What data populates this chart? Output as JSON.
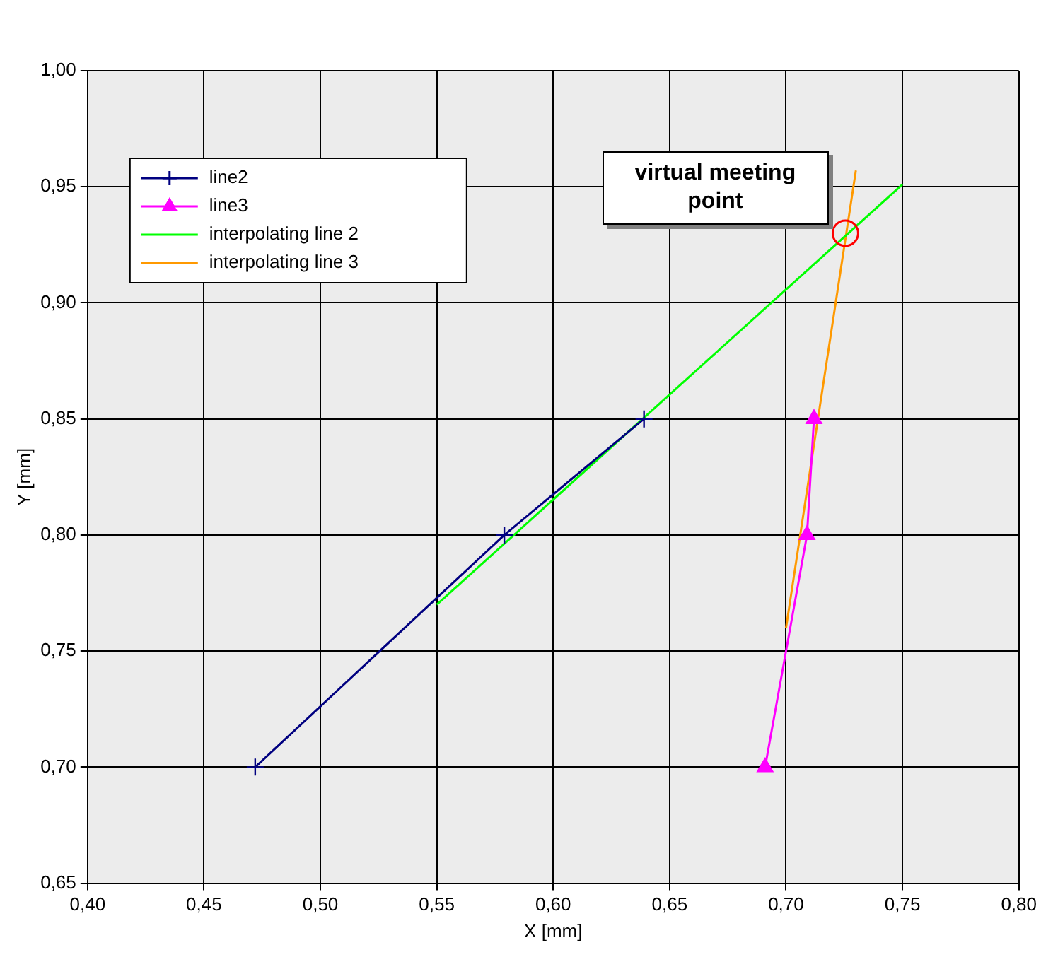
{
  "chart_data": {
    "type": "line",
    "xlabel": "X [mm]",
    "ylabel": "Y [mm]",
    "xlim": [
      0.4,
      0.8
    ],
    "xticks": [
      {
        "value": 0.4,
        "label": "0,40"
      },
      {
        "value": 0.45,
        "label": "0,45"
      },
      {
        "value": 0.5,
        "label": "0,50"
      },
      {
        "value": 0.55,
        "label": "0,55"
      },
      {
        "value": 0.6,
        "label": "0,60"
      },
      {
        "value": 0.65,
        "label": "0,65"
      },
      {
        "value": 0.7,
        "label": "0,70"
      },
      {
        "value": 0.75,
        "label": "0,75"
      },
      {
        "value": 0.8,
        "label": "0,80"
      }
    ],
    "ylim": [
      0.65,
      1.0
    ],
    "yticks": [
      {
        "value": 0.65,
        "label": "0,65"
      },
      {
        "value": 0.7,
        "label": "0,70"
      },
      {
        "value": 0.75,
        "label": "0,75"
      },
      {
        "value": 0.8,
        "label": "0,80"
      },
      {
        "value": 0.85,
        "label": "0,85"
      },
      {
        "value": 0.9,
        "label": "0,90"
      },
      {
        "value": 0.95,
        "label": "0,95"
      },
      {
        "value": 1.0,
        "label": "1,00"
      }
    ],
    "series": [
      {
        "name": "line2",
        "color": "#000080",
        "marker": "cross",
        "x": [
          0.472,
          0.579,
          0.639
        ],
        "values": [
          0.7,
          0.8,
          0.85
        ]
      },
      {
        "name": "line3",
        "color": "#ff00ff",
        "marker": "triangle",
        "x": [
          0.691,
          0.709,
          0.712
        ],
        "values": [
          0.7,
          0.8,
          0.85
        ]
      },
      {
        "name": "interpolating line 2",
        "color": "#00ff00",
        "marker": "none",
        "x": [
          0.55,
          0.75
        ],
        "values": [
          0.77,
          0.951
        ]
      },
      {
        "name": "interpolating line 3",
        "color": "#ff9900",
        "marker": "none",
        "x": [
          0.7,
          0.73
        ],
        "values": [
          0.76,
          0.957
        ]
      }
    ],
    "annotations": [
      {
        "text": "virtual meeting point",
        "x": 0.7255,
        "y": 0.93
      }
    ],
    "grid": true,
    "legend": "top left"
  }
}
